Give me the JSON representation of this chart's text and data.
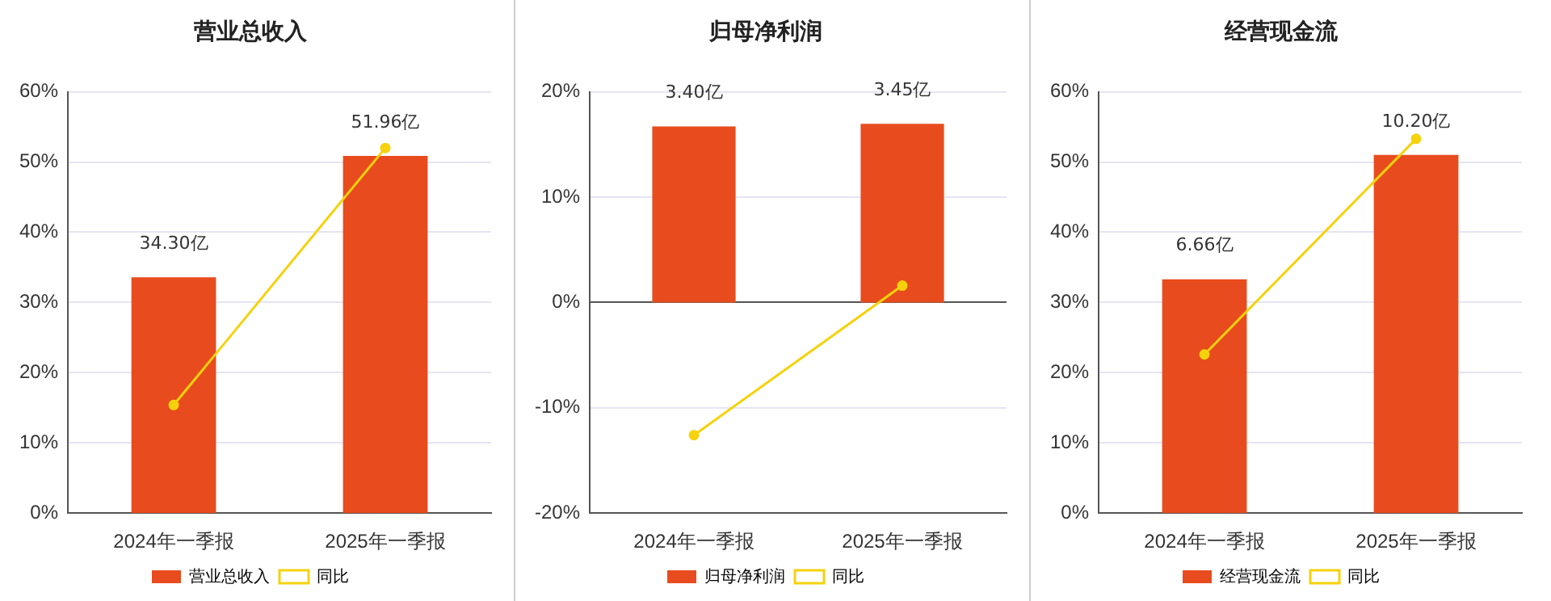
{
  "chart_data": [
    {
      "type": "bar",
      "title": "营业总收入",
      "categories": [
        "2024年一季报",
        "2025年一季报"
      ],
      "series": [
        {
          "name": "营业总收入",
          "color": "#e84c1e",
          "values": [
            34.3,
            51.96
          ],
          "axis": "y2",
          "value_labels": [
            "34.30亿",
            "51.96亿"
          ]
        },
        {
          "type": "line",
          "name": "同比",
          "color": "#f5d20c",
          "values": [
            15.4,
            52.0
          ]
        }
      ],
      "ylim": [
        0,
        60
      ],
      "yticks": [
        {
          "value": 0,
          "label": "0%"
        },
        {
          "value": 10,
          "label": "10%"
        },
        {
          "value": 20,
          "label": "20%"
        },
        {
          "value": 30,
          "label": "30%"
        },
        {
          "value": 40,
          "label": "40%"
        },
        {
          "value": 50,
          "label": "50%"
        },
        {
          "value": 60,
          "label": "60%"
        }
      ],
      "y2lim": [
        0,
        61.3
      ],
      "grid": "y",
      "legend": "bottom",
      "marker": "circle"
    },
    {
      "type": "bar",
      "title": "归母净利润",
      "categories": [
        "2024年一季报",
        "2025年一季报"
      ],
      "series": [
        {
          "name": "归母净利润",
          "color": "#e84c1e",
          "values": [
            3.4,
            3.45
          ],
          "axis": "y2",
          "value_labels": [
            "3.40亿",
            "3.45亿"
          ]
        },
        {
          "type": "line",
          "name": "同比",
          "color": "#f5d20c",
          "values": [
            -12.6,
            1.6
          ]
        }
      ],
      "ylim": [
        -20,
        20
      ],
      "yticks": [
        {
          "value": -20,
          "label": "-20%"
        },
        {
          "value": -10,
          "label": "-10%"
        },
        {
          "value": 0,
          "label": "0%"
        },
        {
          "value": 10,
          "label": "10%"
        },
        {
          "value": 20,
          "label": "20%"
        }
      ],
      "y2lim": [
        -4.07,
        4.07
      ],
      "grid": "y",
      "legend": "bottom",
      "marker": "circle"
    },
    {
      "type": "bar",
      "title": "经营现金流",
      "categories": [
        "2024年一季报",
        "2025年一季报"
      ],
      "series": [
        {
          "name": "经营现金流",
          "color": "#e84c1e",
          "values": [
            6.66,
            10.2
          ],
          "axis": "y2",
          "value_labels": [
            "6.66亿",
            "10.20亿"
          ]
        },
        {
          "type": "line",
          "name": "同比",
          "color": "#f5d20c",
          "values": [
            22.6,
            53.3
          ]
        }
      ],
      "ylim": [
        0,
        60
      ],
      "yticks": [
        {
          "value": 0,
          "label": "0%"
        },
        {
          "value": 10,
          "label": "10%"
        },
        {
          "value": 20,
          "label": "20%"
        },
        {
          "value": 30,
          "label": "30%"
        },
        {
          "value": 40,
          "label": "40%"
        },
        {
          "value": 50,
          "label": "50%"
        },
        {
          "value": 60,
          "label": "60%"
        }
      ],
      "y2lim": [
        0,
        12.0
      ],
      "grid": "y",
      "legend": "bottom",
      "marker": "circle"
    }
  ]
}
